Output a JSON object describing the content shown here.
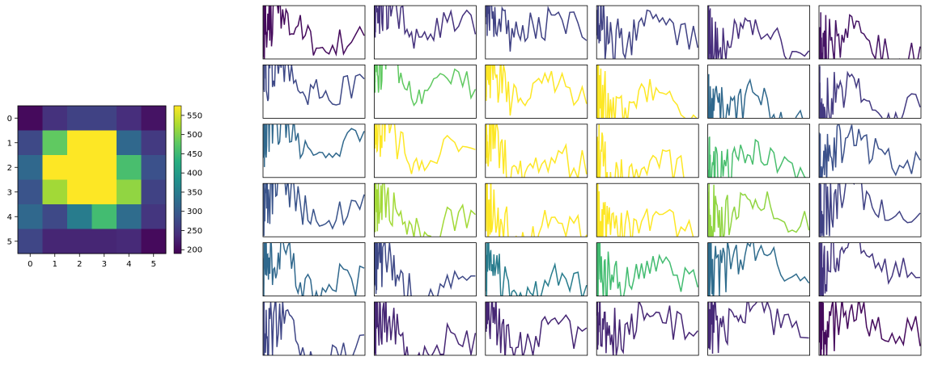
{
  "chart_data": [
    {
      "type": "heatmap",
      "colormap": "viridis",
      "x_ticks": [
        "0",
        "1",
        "2",
        "3",
        "4",
        "5"
      ],
      "y_ticks": [
        "0",
        "1",
        "2",
        "3",
        "4",
        "5"
      ],
      "matrix": [
        [
          200,
          245,
          265,
          265,
          240,
          210
        ],
        [
          275,
          480,
          575,
          575,
          320,
          255
        ],
        [
          320,
          575,
          575,
          575,
          460,
          285
        ],
        [
          290,
          520,
          575,
          575,
          510,
          265
        ],
        [
          320,
          275,
          350,
          455,
          325,
          250
        ],
        [
          270,
          230,
          230,
          230,
          235,
          200
        ]
      ],
      "colorbar": {
        "min": 190,
        "max": 575,
        "ticks": [
          "200",
          "250",
          "300",
          "350",
          "400",
          "450",
          "500",
          "550"
        ]
      }
    },
    {
      "type": "line",
      "grid_rows": 6,
      "grid_cols": 6,
      "axes_ticks": "hidden",
      "ylim": [
        0,
        1
      ]
    }
  ]
}
